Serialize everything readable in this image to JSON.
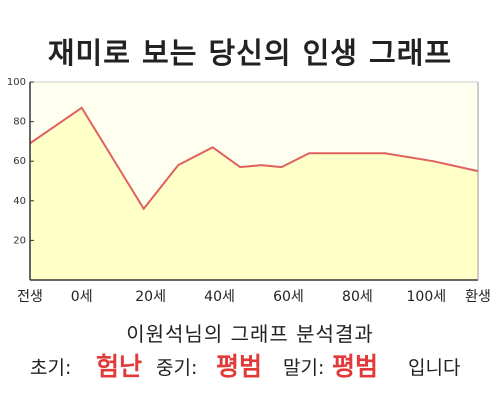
{
  "title": "재미로 보는 당신의 인생 그래프",
  "subtitle": "이원석님의 그래프 분석결과",
  "results": {
    "early_label": "초기:",
    "early_value": "험난",
    "middle_label": "중기:",
    "middle_value": "평범",
    "late_label": "말기:",
    "late_value": "평범",
    "ending": "입니다"
  },
  "colors": {
    "line": "#e06060",
    "fill": "#ffffc8",
    "accent": "#e03a3a"
  },
  "chart_data": {
    "type": "area",
    "x_tick_labels": [
      "전생",
      "0세",
      "20세",
      "40세",
      "60세",
      "80세",
      "100세",
      "환생"
    ],
    "x_tick_positions": [
      -15,
      0,
      20,
      40,
      60,
      80,
      100,
      115
    ],
    "y_ticks": [
      20,
      40,
      60,
      80,
      100
    ],
    "ylim": [
      0,
      100
    ],
    "grid": false,
    "series": [
      {
        "x": [
          -15,
          0,
          18,
          28,
          38,
          46,
          52,
          58,
          66,
          77,
          88,
          102,
          115
        ],
        "y": [
          69,
          87,
          36,
          58,
          67,
          57,
          58,
          57,
          64,
          64,
          64,
          60,
          55
        ]
      }
    ]
  }
}
